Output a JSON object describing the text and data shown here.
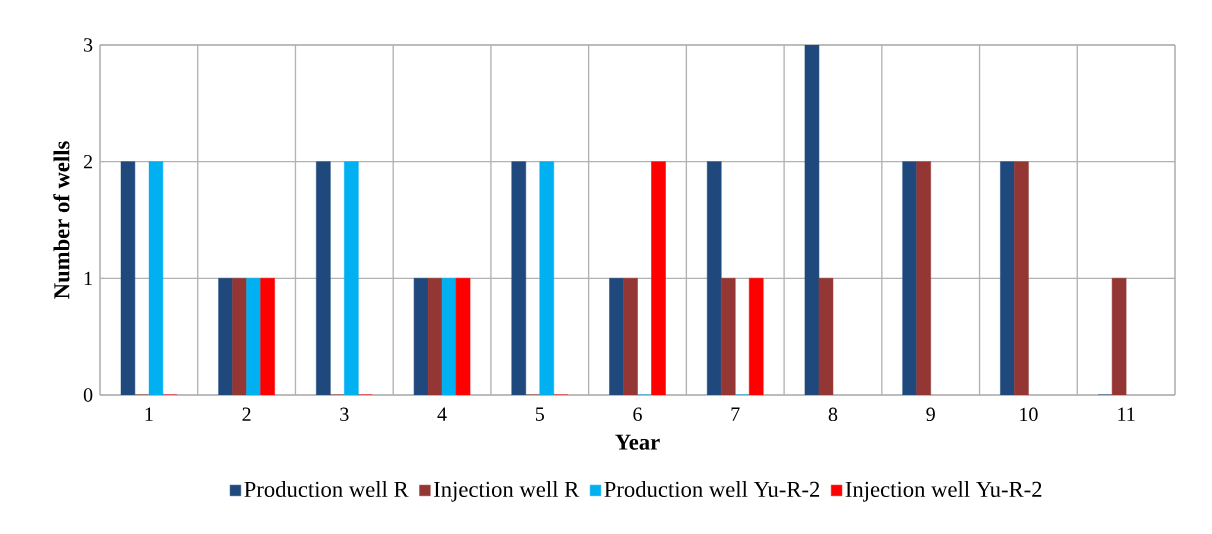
{
  "chart_data": {
    "type": "bar",
    "xlabel": "Year",
    "ylabel": "Number of wells",
    "categories": [
      "1",
      "2",
      "3",
      "4",
      "5",
      "6",
      "7",
      "8",
      "9",
      "10",
      "11"
    ],
    "series": [
      {
        "name": "Production well R",
        "color": "#1f497d",
        "values": [
          2,
          1,
          2,
          1,
          2,
          1,
          2,
          3,
          2,
          2,
          0
        ]
      },
      {
        "name": "Injection well R",
        "color": "#943634",
        "values": [
          0,
          1,
          0,
          1,
          0,
          1,
          1,
          1,
          2,
          2,
          1
        ]
      },
      {
        "name": "Production well Yu-R-2",
        "color": "#00b0f0",
        "values": [
          2,
          1,
          2,
          1,
          2,
          0,
          0,
          null,
          null,
          null,
          null
        ]
      },
      {
        "name": "Injection well Yu-R-2",
        "color": "#ff0000",
        "values": [
          0,
          1,
          0,
          1,
          0,
          2,
          1,
          null,
          null,
          null,
          null
        ]
      }
    ],
    "ylim": [
      0,
      3
    ],
    "yticks": [
      0,
      1,
      2,
      3
    ],
    "grid": true,
    "legend": "bottom"
  }
}
